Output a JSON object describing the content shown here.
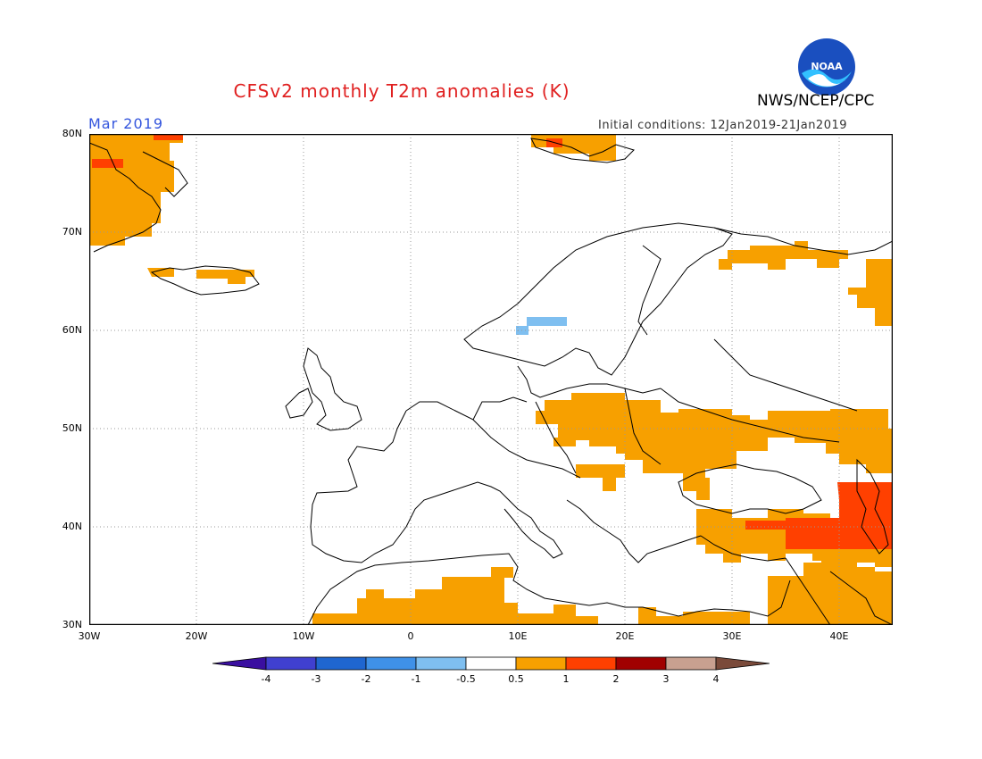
{
  "header": {
    "title": "CFSv2 monthly T2m anomalies (K)",
    "agency": "NWS/NCEP/CPC",
    "period": "Mar 2019",
    "initial_conditions": "Initial conditions: 12Jan2019-21Jan2019",
    "logo_text": "NOAA"
  },
  "colors": {
    "title": "#e02020",
    "period": "#3355dd",
    "land_outline": "#000000",
    "grid": "#999999"
  },
  "map": {
    "lat_labels": [
      "80N",
      "70N",
      "60N",
      "50N",
      "40N",
      "30N"
    ],
    "lon_labels": [
      "30W",
      "20W",
      "10W",
      "0",
      "10E",
      "20E",
      "30E",
      "40E"
    ],
    "lon_range": [
      -30,
      45
    ],
    "lat_range": [
      30,
      80
    ],
    "anomaly_regions": [
      {
        "name": "greenland-east",
        "level": "0.5-1"
      },
      {
        "name": "iceland",
        "level": "0.5-1"
      },
      {
        "name": "southern-norway",
        "level": "-1--0.5"
      },
      {
        "name": "central-eastern-europe",
        "level": "0.5-1"
      },
      {
        "name": "northwest-russia",
        "level": "0.5-1"
      },
      {
        "name": "caucasus-turkey-east",
        "level": "1-2"
      },
      {
        "name": "north-africa",
        "level": "0.5-1"
      },
      {
        "name": "middle-east",
        "level": "0.5-1"
      }
    ]
  },
  "colorbar": {
    "labels": [
      "-4",
      "-3",
      "-2",
      "-1",
      "-0.5",
      "0.5",
      "1",
      "2",
      "3",
      "4"
    ],
    "colors": [
      "#3a0fa0",
      "#4040d0",
      "#1f66d0",
      "#3f91e8",
      "#7fbff0",
      "#ffffff",
      "#f7a000",
      "#ff4000",
      "#a00000",
      "#c8a090",
      "#7a4a3a"
    ]
  }
}
